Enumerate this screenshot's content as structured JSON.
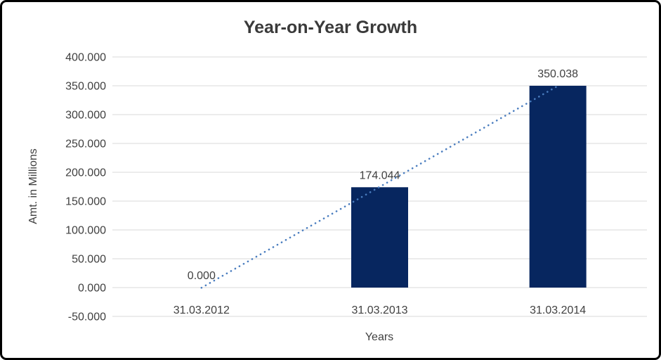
{
  "frame": {
    "border_color": "#000000",
    "background_color": "#ffffff"
  },
  "chart_data": {
    "type": "bar",
    "title": "Year-on-Year Growth",
    "xlabel": "Years",
    "ylabel": "Amt. in Millions",
    "categories": [
      "31.03.2012",
      "31.03.2013",
      "31.03.2014"
    ],
    "values": [
      0,
      174.044,
      350.038
    ],
    "data_labels": [
      "0.000",
      "174.044",
      "350.038"
    ],
    "ylim": [
      -50,
      400
    ],
    "ytick_step": 50,
    "ytick_labels": [
      "400.000",
      "350.000",
      "300.000",
      "250.000",
      "200.000",
      "150.000",
      "100.000",
      "50.000",
      "0.000",
      "-50.000"
    ],
    "grid": true,
    "legend": false,
    "bar_color": "#07265f",
    "gridline_color": "#d9d9d9",
    "text_color": "#404040",
    "title_color": "#3a3a3a",
    "trendline": {
      "type": "linear",
      "style": "dotted",
      "color": "#4a7dbf"
    }
  }
}
